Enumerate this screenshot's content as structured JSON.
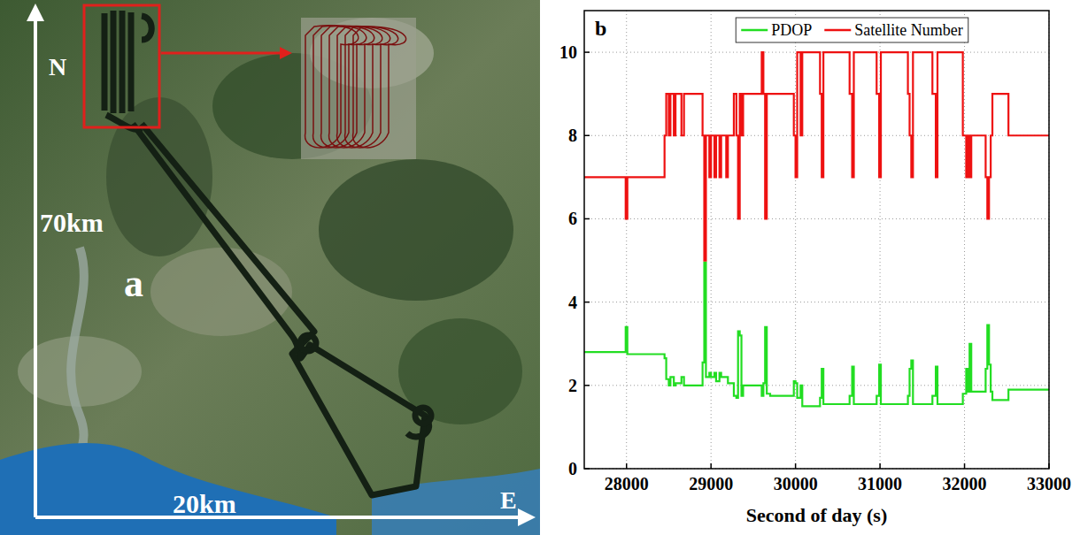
{
  "map": {
    "labels": [
      "N",
      "70km",
      "a",
      "20km",
      "E"
    ]
  },
  "chart_data": {
    "type": "line",
    "panel_label": "b",
    "x_label": "Second of day (s)",
    "x": [
      27500,
      27990,
      28010,
      28450,
      28470,
      28500,
      28520,
      28560,
      28580,
      28650,
      28680,
      28900,
      28920,
      28940,
      28980,
      29000,
      29040,
      29060,
      29100,
      29120,
      29180,
      29200,
      29270,
      29300,
      29320,
      29340,
      29360,
      29380,
      29600,
      29620,
      29640,
      29660,
      29700,
      29980,
      30000,
      30020,
      30060,
      30080,
      30290,
      30310,
      30330,
      30640,
      30670,
      30690,
      30960,
      30990,
      31010,
      31330,
      31350,
      31370,
      31390,
      31620,
      31660,
      31680,
      31980,
      32020,
      32040,
      32060,
      32080,
      32250,
      32270,
      32290,
      32310,
      32330,
      32520,
      33000
    ],
    "series": [
      {
        "name": "PDOP",
        "color": "#22dd22",
        "line_style": "steps",
        "values": [
          2.8,
          3.4,
          2.75,
          2.65,
          2.15,
          2.0,
          2.2,
          2.0,
          2.05,
          2.2,
          2.0,
          2.55,
          4.95,
          2.2,
          2.3,
          2.2,
          2.3,
          2.1,
          2.3,
          2.2,
          2.2,
          2.05,
          1.75,
          1.7,
          3.3,
          3.2,
          1.75,
          2.0,
          1.75,
          2.05,
          3.4,
          1.8,
          1.75,
          2.1,
          2.05,
          1.7,
          2.0,
          1.5,
          1.7,
          2.4,
          1.55,
          1.75,
          2.45,
          1.55,
          1.75,
          2.5,
          1.55,
          1.75,
          2.4,
          2.6,
          1.55,
          1.75,
          2.45,
          1.55,
          1.8,
          2.4,
          1.85,
          3.0,
          1.85,
          2.4,
          3.45,
          2.5,
          1.85,
          1.65,
          1.9,
          1.9
        ]
      },
      {
        "name": "Satellite Number",
        "color": "#ee1111",
        "line_style": "steps",
        "values": [
          7,
          6,
          7,
          8,
          9,
          8,
          9,
          8,
          9,
          8,
          9,
          8,
          5,
          8,
          7,
          8,
          7,
          8,
          7,
          8,
          7,
          8,
          9,
          8,
          6,
          9,
          8,
          9,
          10,
          9,
          6,
          9,
          9,
          8,
          7,
          10,
          8,
          10,
          9,
          7,
          10,
          9,
          7,
          10,
          9,
          7,
          10,
          9,
          8,
          7,
          10,
          9,
          7,
          10,
          8,
          7,
          8,
          7,
          8,
          7,
          6,
          7,
          8,
          9,
          8,
          8
        ]
      }
    ],
    "xlim": [
      27500,
      33000
    ],
    "xticks": [
      28000,
      29000,
      30000,
      31000,
      32000,
      33000
    ],
    "ylim": [
      0,
      11
    ],
    "yticks": [
      0,
      2,
      4,
      6,
      8,
      10
    ],
    "grid": true,
    "legend": "top"
  }
}
